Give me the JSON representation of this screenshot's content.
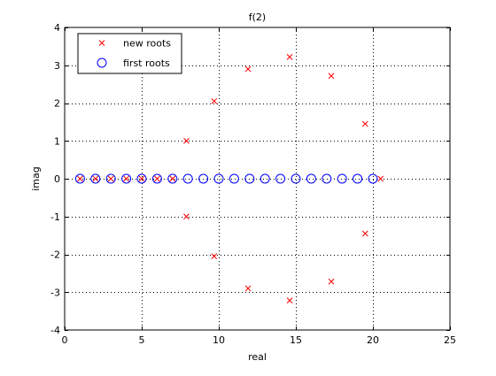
{
  "chart_data": {
    "type": "scatter",
    "title": "f(2)",
    "xlabel": "real",
    "ylabel": "imag",
    "xlim": [
      0,
      25
    ],
    "ylim": [
      -4,
      4
    ],
    "xticks": [
      0,
      5,
      10,
      15,
      20,
      25
    ],
    "yticks": [
      -4,
      -3,
      -2,
      -1,
      0,
      1,
      2,
      3,
      4
    ],
    "grid": true,
    "legend_position": "top-left",
    "series": [
      {
        "name": "new roots",
        "marker": "x",
        "color": "#ff0000",
        "x": [
          1,
          2,
          3,
          4,
          5,
          6,
          7,
          7.9,
          7.9,
          9.7,
          9.7,
          11.9,
          11.9,
          14.6,
          14.6,
          17.3,
          17.3,
          19.5,
          19.5,
          20.5
        ],
        "y": [
          0,
          0,
          0,
          0,
          0,
          0,
          0,
          1.0,
          -1.0,
          2.05,
          -2.05,
          2.9,
          -2.9,
          3.22,
          -3.22,
          2.72,
          -2.72,
          1.45,
          -1.45,
          0
        ]
      },
      {
        "name": "first roots",
        "marker": "o",
        "color": "#0000ff",
        "x": [
          1,
          2,
          3,
          4,
          5,
          6,
          7,
          8,
          9,
          10,
          11,
          12,
          13,
          14,
          15,
          16,
          17,
          18,
          19,
          20
        ],
        "y": [
          0,
          0,
          0,
          0,
          0,
          0,
          0,
          0,
          0,
          0,
          0,
          0,
          0,
          0,
          0,
          0,
          0,
          0,
          0,
          0
        ]
      }
    ]
  }
}
